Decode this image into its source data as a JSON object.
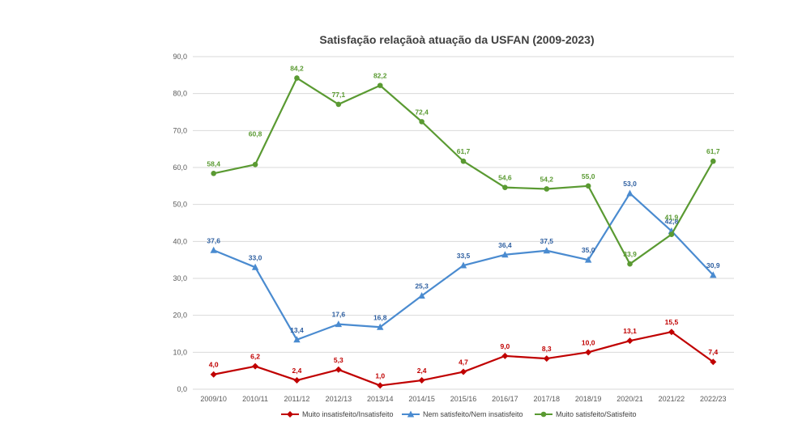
{
  "chart_data": {
    "type": "line",
    "title": "Satisfação relaçãoà atuação da USFAN (2009-2023)",
    "xlabel": "",
    "ylabel": "",
    "ylim": [
      0,
      90
    ],
    "yticks": [
      "0,0",
      "10,0",
      "20,0",
      "30,0",
      "40,0",
      "50,0",
      "60,0",
      "70,0",
      "80,0",
      "90,0"
    ],
    "grid": true,
    "legend_position": "bottom",
    "categories": [
      "2009/10",
      "2010/11",
      "2011/12",
      "2012/13",
      "2013/14",
      "2014/15",
      "2015/16",
      "2016/17",
      "2017/18",
      "2018/19",
      "2020/21",
      "2021/22",
      "2022/23"
    ],
    "series": [
      {
        "name": "Muito insatisfeito/Insatisfeito",
        "color": "#c00000",
        "marker": "diamond",
        "values": [
          4.0,
          6.2,
          2.4,
          5.3,
          1.0,
          2.4,
          4.7,
          9.0,
          8.3,
          10.0,
          13.1,
          15.5,
          7.4
        ],
        "labels": [
          "4,0",
          "6,2",
          "2,4",
          "5,3",
          "1,0",
          "2,4",
          "4,7",
          "9,0",
          "8,3",
          "10,0",
          "13,1",
          "15,5",
          "7,4"
        ]
      },
      {
        "name": "Nem satisfeito/Nem insatisfeito",
        "color": "#4a8bd0",
        "label_color": "#2e5fa0",
        "marker": "triangle",
        "values": [
          37.6,
          33.0,
          13.4,
          17.6,
          16.8,
          25.3,
          33.5,
          36.4,
          37.5,
          35.0,
          53.0,
          42.8,
          30.9
        ],
        "labels": [
          "37,6",
          "33,0",
          "13,4",
          "17,6",
          "16,8",
          "25,3",
          "33,5",
          "36,4",
          "37,5",
          "35,0",
          "53,0",
          "42,8",
          "30,9"
        ]
      },
      {
        "name": "Muito satisfeito/Satisfeito",
        "color": "#5a9a32",
        "label_color": "#5a9a32",
        "marker": "circle",
        "values": [
          58.4,
          60.8,
          84.2,
          77.1,
          82.2,
          72.4,
          61.7,
          54.6,
          54.2,
          55.0,
          33.9,
          41.9,
          61.7
        ],
        "labels": [
          "58,4",
          "60,8",
          "84,2",
          "77,1",
          "82,2",
          "72,4",
          "61,7",
          "54,6",
          "54,2",
          "55,0",
          "33,9",
          "41,9",
          "61,7"
        ]
      }
    ]
  }
}
